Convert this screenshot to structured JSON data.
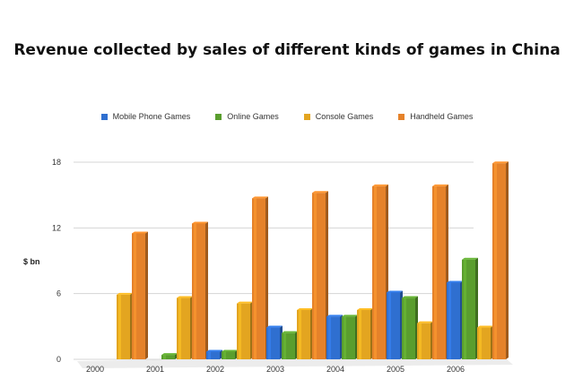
{
  "chart_data": {
    "type": "bar",
    "title": "Revenue collected by sales of different kinds of games in China",
    "xlabel": "",
    "ylabel": "$ bn",
    "categories": [
      "2000",
      "2001",
      "2002",
      "2003",
      "2004",
      "2005",
      "2006"
    ],
    "series": [
      {
        "name": "Mobile Phone Games",
        "color": "#2f6fd0",
        "values": [
          0,
          0,
          0.7,
          2.9,
          3.9,
          6.1,
          7
        ]
      },
      {
        "name": "Online Games",
        "color": "#5a9e2e",
        "values": [
          0,
          0.4,
          0.7,
          2.4,
          3.9,
          5.6,
          9.1
        ]
      },
      {
        "name": "Console Games",
        "color": "#e3a520",
        "values": [
          5.9,
          5.6,
          5.1,
          4.5,
          4.5,
          3.3,
          2.9
        ]
      },
      {
        "name": "Handheld Games",
        "color": "#e5822a",
        "values": [
          11.5,
          12.4,
          14.7,
          15.2,
          15.8,
          15.8,
          17.9
        ]
      }
    ],
    "yticks": [
      0,
      6,
      12,
      18
    ],
    "ylim": [
      0,
      18
    ],
    "grid": true,
    "legend_position": "top"
  }
}
